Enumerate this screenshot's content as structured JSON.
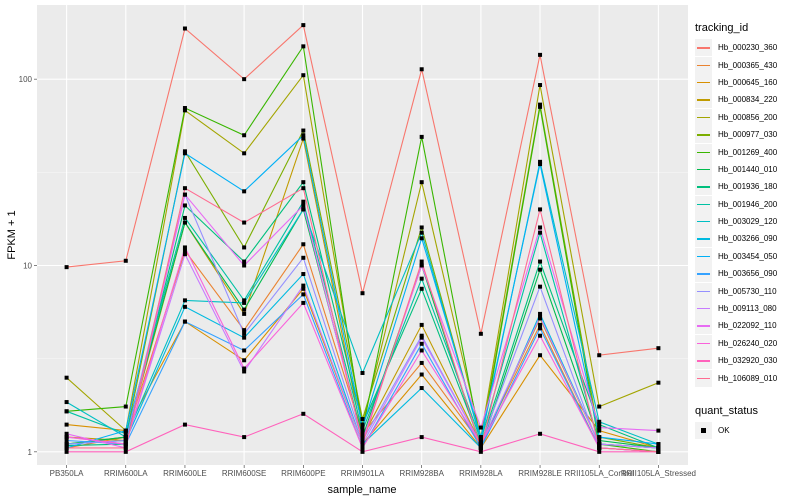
{
  "chart_data": {
    "type": "line",
    "title": "",
    "xlabel": "sample_name",
    "ylabel": "FPKM + 1",
    "yscale": "log10",
    "ylim": [
      0.85,
      250
    ],
    "yticks": [
      1,
      10,
      100
    ],
    "ytick_labels": [
      "1",
      "10",
      "100"
    ],
    "grid": true,
    "legend_position": "right",
    "categories": [
      "PB350LA",
      "RRIM600LA",
      "RRIM600LE",
      "RRIM600SE",
      "RRIM600PE",
      "RRIM901LA",
      "RRIM928BA",
      "RRIM928LA",
      "RRIM928LE",
      "RRII105LA_Control",
      "RRII105LA_Stressed"
    ],
    "legend": {
      "color_title": "tracking_id",
      "shape_title": "quant_status",
      "shape_entries": [
        "OK"
      ]
    },
    "series": [
      {
        "name": "Hb_000230_360",
        "color": "#F8766D",
        "values": [
          9.8,
          10.6,
          187,
          100,
          195,
          7.1,
          113,
          4.3,
          135,
          3.3,
          3.6
        ]
      },
      {
        "name": "Hb_000365_430",
        "color": "#EA8331",
        "values": [
          1.05,
          1.2,
          12,
          4.5,
          13,
          1.25,
          3.0,
          1.1,
          4.8,
          1.05,
          1.0
        ]
      },
      {
        "name": "Hb_000645_160",
        "color": "#D89000",
        "values": [
          1.4,
          1.3,
          5,
          3.1,
          7.5,
          1.1,
          2.6,
          1.05,
          3.3,
          1.3,
          1.05
        ]
      },
      {
        "name": "Hb_000834_220",
        "color": "#C09B00",
        "values": [
          1.2,
          1.15,
          17,
          5.5,
          48,
          1.2,
          4.8,
          1.1,
          5.2,
          1.1,
          1.05
        ]
      },
      {
        "name": "Hb_000856_200",
        "color": "#A3A500",
        "values": [
          2.5,
          1.3,
          68,
          40,
          105,
          1.4,
          28,
          1.2,
          93,
          1.75,
          2.35
        ]
      },
      {
        "name": "Hb_000977_030",
        "color": "#7CAE00",
        "values": [
          1.1,
          1.2,
          41,
          12.5,
          53,
          1.5,
          16,
          1.15,
          73,
          1.2,
          1.05
        ]
      },
      {
        "name": "Hb_001269_400",
        "color": "#39B600",
        "values": [
          1.65,
          1.75,
          70,
          50,
          150,
          1.3,
          49,
          1.1,
          71,
          1.1,
          1.0
        ]
      },
      {
        "name": "Hb_001440_010",
        "color": "#00BB4E",
        "values": [
          1.1,
          1.2,
          17,
          5.8,
          20,
          1.2,
          10,
          1.05,
          9.5,
          1.15,
          1.05
        ]
      },
      {
        "name": "Hb_001936_180",
        "color": "#00BF7D",
        "values": [
          1.08,
          1.1,
          21,
          10.5,
          28,
          1.4,
          7.5,
          1.1,
          10.5,
          1.4,
          1.05
        ]
      },
      {
        "name": "Hb_001946_200",
        "color": "#00C1A3",
        "values": [
          1.65,
          1.25,
          18,
          6.5,
          22,
          1.3,
          8.5,
          1.15,
          15,
          1.1,
          1.05
        ]
      },
      {
        "name": "Hb_003029_120",
        "color": "#00BFC4",
        "values": [
          1.85,
          1.2,
          6.5,
          6.3,
          20,
          2.65,
          15,
          1.15,
          36,
          1.45,
          1.1
        ]
      },
      {
        "name": "Hb_003266_090",
        "color": "#00BAE0",
        "values": [
          1.1,
          1.15,
          6,
          4.1,
          9,
          1.1,
          2.2,
          1.05,
          5.5,
          1.1,
          1.05
        ]
      },
      {
        "name": "Hb_003454_050",
        "color": "#00B0F6",
        "values": [
          1.05,
          1.3,
          40,
          25,
          50,
          1.35,
          14,
          1.2,
          35,
          1.2,
          1.1
        ]
      },
      {
        "name": "Hb_003656_090",
        "color": "#35A2FF",
        "values": [
          1.15,
          1.1,
          5,
          3.5,
          7,
          1.05,
          3.8,
          1.05,
          4.6,
          1.05,
          1.0
        ]
      },
      {
        "name": "Hb_005730_110",
        "color": "#9590FF",
        "values": [
          1.1,
          1.15,
          24,
          4.3,
          11,
          1.15,
          4.2,
          1.1,
          7.7,
          1.05,
          1.0
        ]
      },
      {
        "name": "Hb_009113_080",
        "color": "#C77CFF",
        "values": [
          1.2,
          1.1,
          11.5,
          2.7,
          7.8,
          1.1,
          4.1,
          1.1,
          5.3,
          1.1,
          1.05
        ]
      },
      {
        "name": "Hb_022092_110",
        "color": "#E76BF3",
        "values": [
          1.25,
          1.05,
          24,
          10,
          21,
          1.15,
          10,
          1.35,
          16,
          1.35,
          1.3
        ]
      },
      {
        "name": "Hb_026240_020",
        "color": "#FA62DB",
        "values": [
          1.2,
          1.1,
          12.5,
          2.8,
          6.3,
          1.05,
          3.5,
          1.1,
          4.2,
          1.05,
          1.0
        ]
      },
      {
        "name": "Hb_032920_030",
        "color": "#FF62BC",
        "values": [
          1.0,
          1.0,
          1.4,
          1.2,
          1.6,
          1.0,
          1.2,
          1.0,
          1.25,
          1.0,
          1.0
        ]
      },
      {
        "name": "Hb_106089_010",
        "color": "#FF6C91",
        "values": [
          1.05,
          1.05,
          26,
          17,
          26,
          1.1,
          10.5,
          1.05,
          20,
          1.05,
          1.0
        ]
      }
    ]
  }
}
